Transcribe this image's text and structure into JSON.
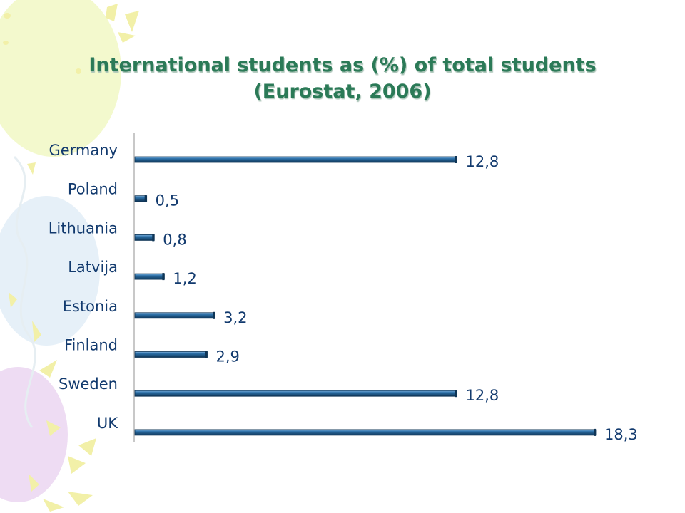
{
  "title_lines": [
    "International students as (%) of total students",
    "(Eurostat, 2006)"
  ],
  "colors": {
    "bar": "#1f5f93",
    "bar_dark": "#0f3556",
    "bar_light": "#5f9acb",
    "axis": "#b5b5b5",
    "title": "#2b7a57",
    "label": "#123a6e"
  },
  "chart_data": {
    "type": "bar",
    "orientation": "horizontal",
    "title": "International students as (%) of total students (Eurostat, 2006)",
    "categories": [
      "Germany",
      "Poland",
      "Lithuania",
      "Latvija",
      "Estonia",
      "Finland",
      "Sweden",
      "UK"
    ],
    "values": [
      12.8,
      0.5,
      0.8,
      1.2,
      3.2,
      2.9,
      12.8,
      18.3
    ],
    "data_labels": [
      "12,8",
      "0,5",
      "0,8",
      "1,2",
      "3,2",
      "2,9",
      "12,8",
      "18,3"
    ],
    "xlabel": "",
    "ylabel": "",
    "xlim": [
      0,
      18.3
    ],
    "grid": false,
    "legend": false
  }
}
